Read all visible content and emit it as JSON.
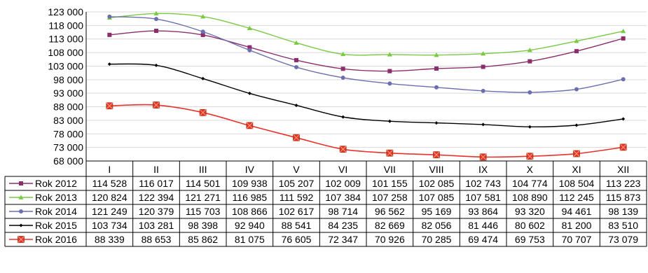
{
  "chart_data": {
    "type": "line",
    "categories": [
      "I",
      "II",
      "III",
      "IV",
      "V",
      "VI",
      "VII",
      "VIII",
      "IX",
      "X",
      "XI",
      "XII"
    ],
    "ylim": [
      68000,
      123000
    ],
    "y_ticks": [
      123000,
      118000,
      113000,
      108000,
      103000,
      98000,
      93000,
      88000,
      83000,
      78000,
      73000,
      68000
    ],
    "y_tick_labels": [
      "123 000",
      "118 000",
      "113 000",
      "108 000",
      "103 000",
      "98 000",
      "93 000",
      "88 000",
      "83 000",
      "78 000",
      "73 000",
      "68 000"
    ],
    "grid": true,
    "legend": "data-table-left",
    "series": [
      {
        "name": "Rok 2012",
        "color": "#8B2D6B",
        "marker": "square",
        "values": [
          114528,
          116017,
          114501,
          109938,
          105207,
          102009,
          101155,
          102085,
          102743,
          104774,
          108504,
          113223
        ],
        "labels": [
          "114 528",
          "116 017",
          "114 501",
          "109 938",
          "105 207",
          "102 009",
          "101 155",
          "102 085",
          "102 743",
          "104 774",
          "108 504",
          "113 223"
        ]
      },
      {
        "name": "Rok 2013",
        "color": "#7AC943",
        "marker": "triangle",
        "values": [
          120824,
          122394,
          121271,
          116985,
          111592,
          107384,
          107258,
          107085,
          107581,
          108890,
          112245,
          115873
        ],
        "labels": [
          "120 824",
          "122 394",
          "121 271",
          "116 985",
          "111 592",
          "107 384",
          "107 258",
          "107 085",
          "107 581",
          "108 890",
          "112 245",
          "115 873"
        ]
      },
      {
        "name": "Rok 2014",
        "color": "#6B6FB0",
        "marker": "circle",
        "values": [
          121249,
          120379,
          115703,
          108866,
          102617,
          98714,
          96562,
          95169,
          93864,
          93320,
          94461,
          98139
        ],
        "labels": [
          "121 249",
          "120 379",
          "115 703",
          "108 866",
          "102 617",
          "98 714",
          "96 562",
          "95 169",
          "93 864",
          "93 320",
          "94 461",
          "98 139"
        ]
      },
      {
        "name": "Rok 2015",
        "color": "#000000",
        "marker": "diamond",
        "values": [
          103734,
          103281,
          98398,
          92940,
          88541,
          84235,
          82669,
          82056,
          81446,
          80602,
          81200,
          83510
        ],
        "labels": [
          "103 734",
          "103 281",
          "98 398",
          "92 940",
          "88 541",
          "84 235",
          "82 669",
          "82 056",
          "81 446",
          "80 602",
          "81 200",
          "83 510"
        ]
      },
      {
        "name": "Rok 2016",
        "color": "#E8312A",
        "marker": "square-x",
        "values": [
          88339,
          88653,
          85862,
          81075,
          76605,
          72347,
          70926,
          70285,
          69474,
          69753,
          70707,
          73079
        ],
        "labels": [
          "88 339",
          "88 653",
          "85 862",
          "81 075",
          "76 605",
          "72 347",
          "70 926",
          "70 285",
          "69 474",
          "69 753",
          "70 707",
          "73 079"
        ]
      }
    ]
  }
}
